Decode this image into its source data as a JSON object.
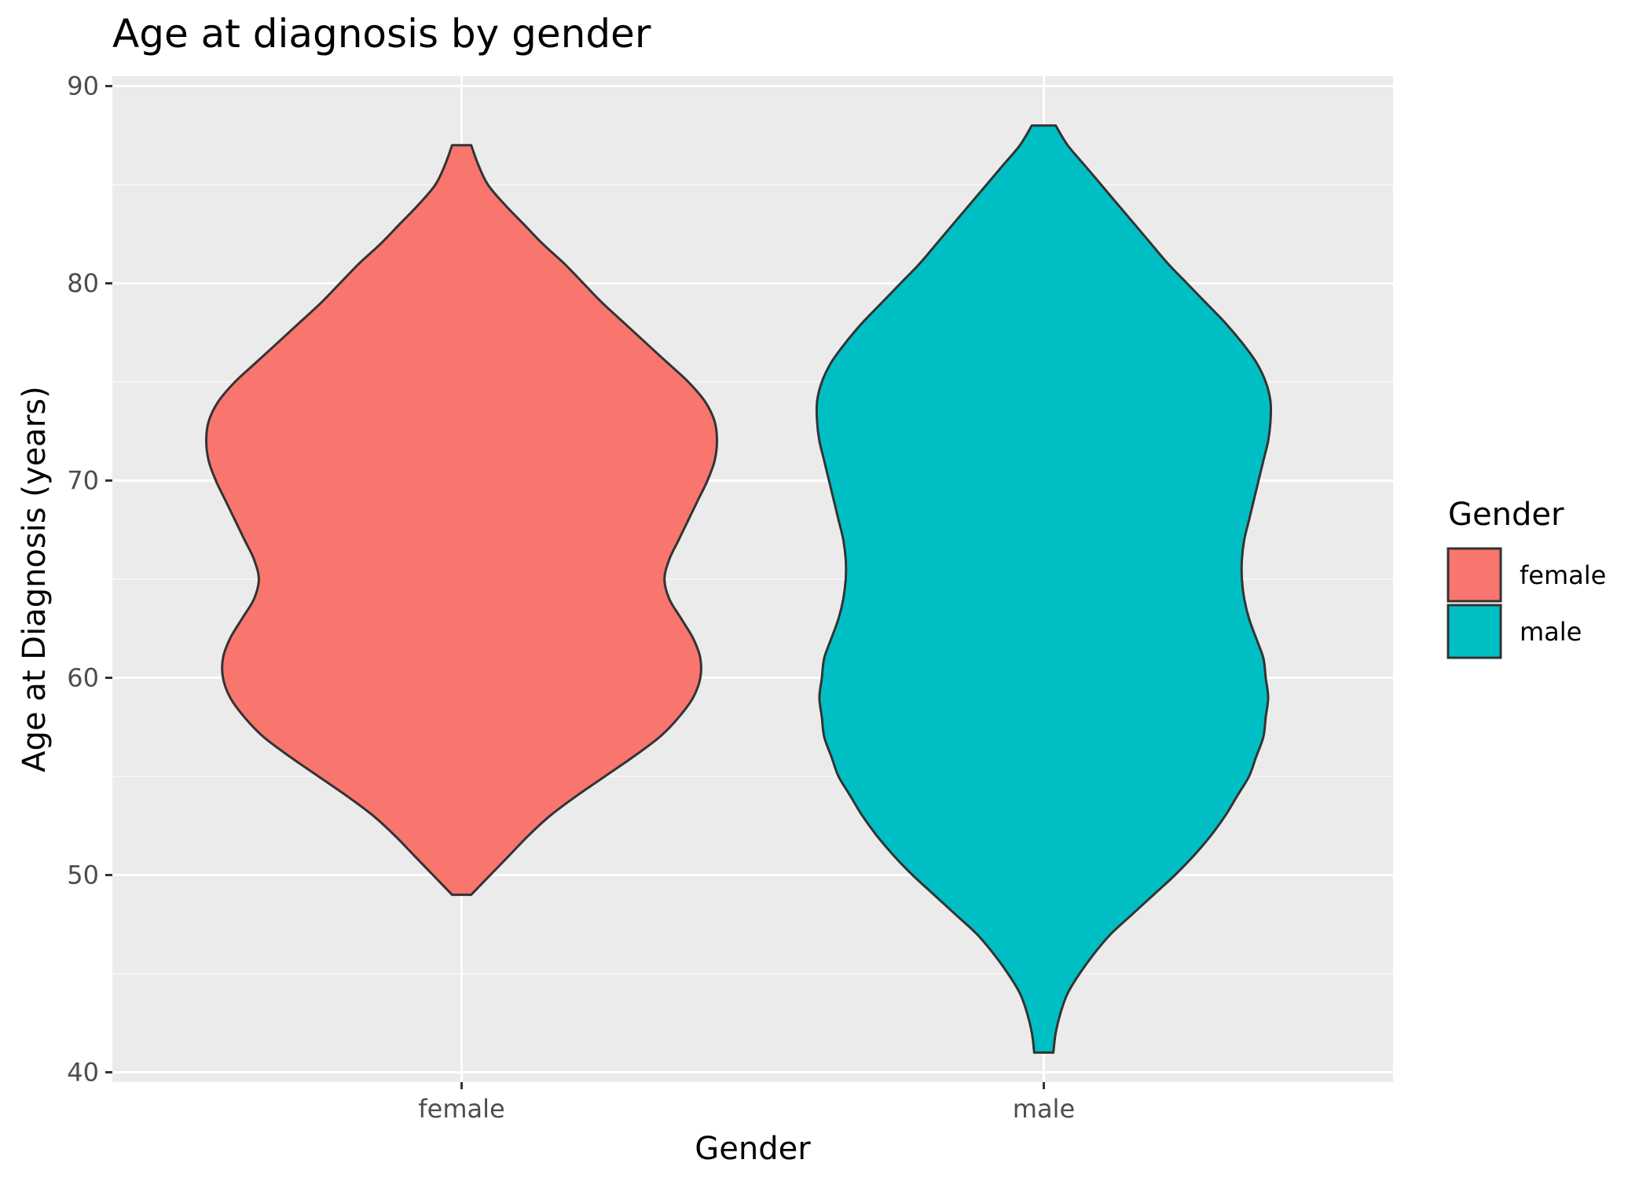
{
  "chart_data": {
    "type": "violin",
    "title": "Age at diagnosis by gender",
    "xlabel": "Gender",
    "ylabel": "Age at Diagnosis (years)",
    "categories": [
      "female",
      "male"
    ],
    "ylim": [
      39.5,
      90.5
    ],
    "y_ticks": [
      40,
      50,
      60,
      70,
      80,
      90
    ],
    "grid": true,
    "legend": {
      "title": "Gender",
      "position": "right",
      "entries": [
        {
          "label": "female",
          "color": "#F8766D"
        },
        {
          "label": "male",
          "color": "#00BFC4"
        }
      ]
    },
    "series": [
      {
        "category": "female",
        "color": "#F8766D",
        "min": 49,
        "max": 87,
        "density_profile": [
          [
            49,
            0.04
          ],
          [
            50,
            0.12
          ],
          [
            51,
            0.2
          ],
          [
            52,
            0.28
          ],
          [
            53,
            0.37
          ],
          [
            54,
            0.48
          ],
          [
            55,
            0.6
          ],
          [
            56,
            0.72
          ],
          [
            57,
            0.83
          ],
          [
            58,
            0.91
          ],
          [
            59,
            0.97
          ],
          [
            60,
            1.0
          ],
          [
            61,
            1.0
          ],
          [
            62,
            0.97
          ],
          [
            63,
            0.92
          ],
          [
            64,
            0.87
          ],
          [
            65,
            0.85
          ],
          [
            66,
            0.87
          ],
          [
            67,
            0.91
          ],
          [
            68,
            0.95
          ],
          [
            69,
            0.99
          ],
          [
            70,
            1.03
          ],
          [
            71,
            1.06
          ],
          [
            72,
            1.07
          ],
          [
            73,
            1.06
          ],
          [
            74,
            1.02
          ],
          [
            75,
            0.95
          ],
          [
            76,
            0.86
          ],
          [
            77,
            0.77
          ],
          [
            78,
            0.68
          ],
          [
            79,
            0.59
          ],
          [
            80,
            0.51
          ],
          [
            81,
            0.43
          ],
          [
            82,
            0.34
          ],
          [
            83,
            0.26
          ],
          [
            84,
            0.18
          ],
          [
            85,
            0.11
          ],
          [
            86,
            0.07
          ],
          [
            87,
            0.04
          ]
        ]
      },
      {
        "category": "male",
        "color": "#00BFC4",
        "min": 41,
        "max": 88,
        "density_profile": [
          [
            41,
            0.04
          ],
          [
            42,
            0.05
          ],
          [
            43,
            0.07
          ],
          [
            44,
            0.1
          ],
          [
            45,
            0.15
          ],
          [
            46,
            0.21
          ],
          [
            47,
            0.28
          ],
          [
            48,
            0.37
          ],
          [
            49,
            0.46
          ],
          [
            50,
            0.55
          ],
          [
            51,
            0.63
          ],
          [
            52,
            0.7
          ],
          [
            53,
            0.76
          ],
          [
            54,
            0.81
          ],
          [
            55,
            0.86
          ],
          [
            56,
            0.89
          ],
          [
            57,
            0.92
          ],
          [
            58,
            0.93
          ],
          [
            59,
            0.94
          ],
          [
            60,
            0.93
          ],
          [
            61,
            0.92
          ],
          [
            62,
            0.89
          ],
          [
            63,
            0.86
          ],
          [
            64,
            0.84
          ],
          [
            65,
            0.83
          ],
          [
            66,
            0.83
          ],
          [
            67,
            0.84
          ],
          [
            68,
            0.86
          ],
          [
            69,
            0.88
          ],
          [
            70,
            0.9
          ],
          [
            71,
            0.92
          ],
          [
            72,
            0.94
          ],
          [
            73,
            0.95
          ],
          [
            74,
            0.95
          ],
          [
            75,
            0.93
          ],
          [
            76,
            0.89
          ],
          [
            77,
            0.83
          ],
          [
            78,
            0.76
          ],
          [
            79,
            0.68
          ],
          [
            80,
            0.6
          ],
          [
            81,
            0.52
          ],
          [
            82,
            0.45
          ],
          [
            83,
            0.38
          ],
          [
            84,
            0.31
          ],
          [
            85,
            0.24
          ],
          [
            86,
            0.17
          ],
          [
            87,
            0.1
          ],
          [
            88,
            0.05
          ]
        ]
      }
    ]
  },
  "colors": {
    "panel_background": "#EBEBEB",
    "grid_major": "#FFFFFF",
    "grid_minor": "#F5F5F5",
    "violin_outline": "#333333",
    "tick_text": "#4D4D4D"
  }
}
